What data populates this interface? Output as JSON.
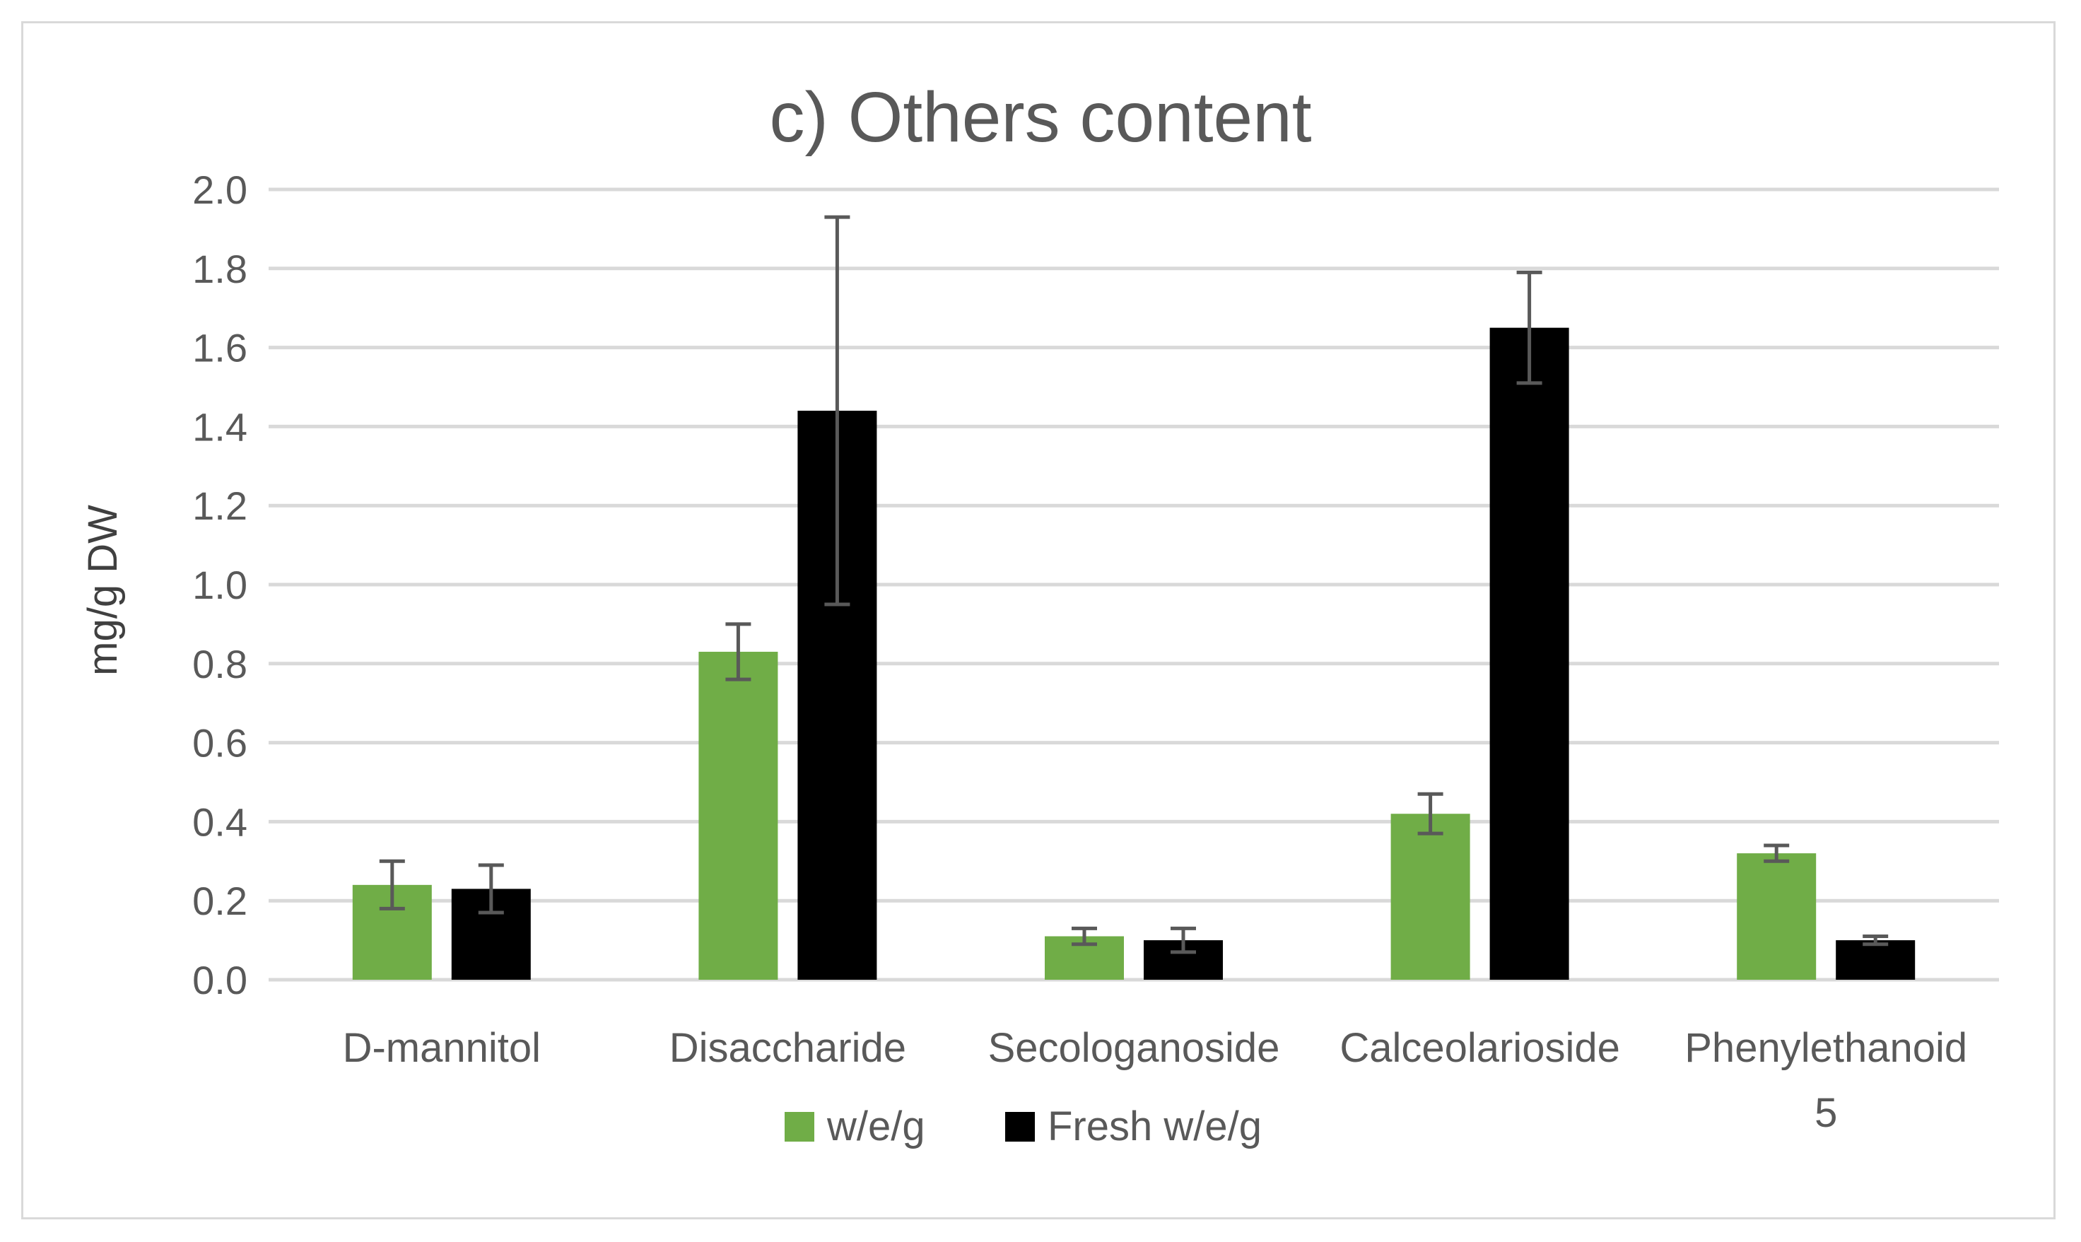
{
  "chart_data": {
    "type": "bar",
    "title": "c) Others content",
    "xlabel": "",
    "ylabel": "mg/g DW",
    "ylim": [
      0,
      2.0
    ],
    "yticks": [
      "0.0",
      "0.2",
      "0.4",
      "0.6",
      "0.8",
      "1.0",
      "1.2",
      "1.4",
      "1.6",
      "1.8",
      "2.0"
    ],
    "grid": true,
    "legend_position": "bottom",
    "categories": [
      [
        "D-mannitol"
      ],
      [
        "Disaccharide"
      ],
      [
        "Secologanoside"
      ],
      [
        "Calceolarioside"
      ],
      [
        "Phenylethanoid",
        "5"
      ]
    ],
    "series": [
      {
        "name": "w/e/g",
        "color": "#70ad47",
        "values": [
          0.24,
          0.83,
          0.11,
          0.42,
          0.32
        ],
        "error_low": [
          0.18,
          0.76,
          0.09,
          0.37,
          0.3
        ],
        "error_high": [
          0.3,
          0.9,
          0.13,
          0.47,
          0.34
        ]
      },
      {
        "name": "Fresh w/e/g",
        "color": "#000000",
        "values": [
          0.23,
          1.44,
          0.1,
          1.65,
          0.1
        ],
        "error_low": [
          0.17,
          0.95,
          0.07,
          1.51,
          0.09
        ],
        "error_high": [
          0.29,
          1.93,
          0.13,
          1.79,
          0.11
        ]
      }
    ],
    "colors": {
      "grid": "#d9d9d9",
      "error_bar": "#595959",
      "text": "#595959"
    }
  }
}
